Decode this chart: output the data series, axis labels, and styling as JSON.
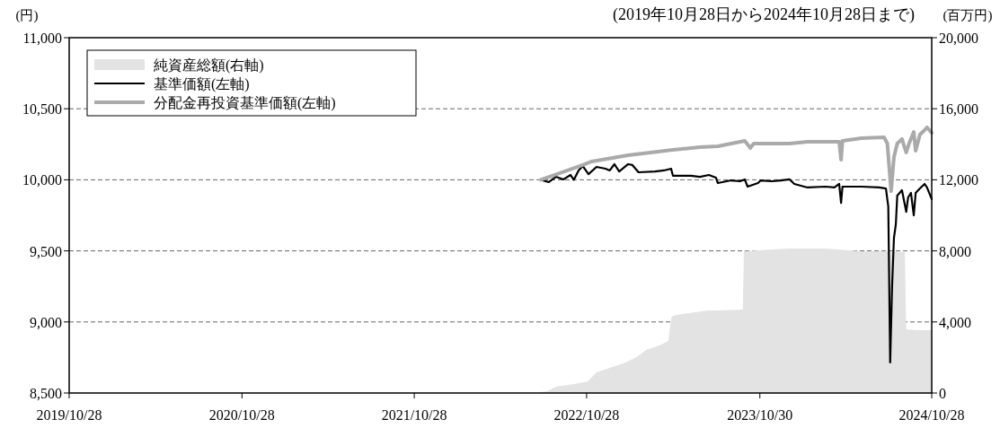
{
  "chart_data": {
    "type": "line",
    "subtitle": "(2019年10月28日から2024年10月28日まで)",
    "ylabel": "(円)",
    "y2label": "(百万円)",
    "xlim": [
      "2019-10-28",
      "2024-10-28"
    ],
    "xticks": [
      {
        "value": "2019-10-28",
        "label": "2019/10/28"
      },
      {
        "value": "2020-10-28",
        "label": "2020/10/28"
      },
      {
        "value": "2021-10-28",
        "label": "2021/10/28"
      },
      {
        "value": "2022-10-28",
        "label": "2022/10/28"
      },
      {
        "value": "2023-10-30",
        "label": "2023/10/30"
      },
      {
        "value": "2024-10-28",
        "label": "2024/10/28"
      }
    ],
    "ylim": [
      8500,
      11000
    ],
    "yticks": [
      {
        "value": 8500,
        "label": "8,500"
      },
      {
        "value": 9000,
        "label": "9,000"
      },
      {
        "value": 9500,
        "label": "9,500"
      },
      {
        "value": 10000,
        "label": "10,000"
      },
      {
        "value": 10500,
        "label": "10,500"
      },
      {
        "value": 11000,
        "label": "11,000"
      }
    ],
    "y2lim": [
      0,
      20000
    ],
    "y2ticks": [
      0,
      {
        "value": 4000,
        "label": "4,000"
      },
      {
        "value": 8000,
        "label": "8,000"
      },
      {
        "value": 12000,
        "label": "12,000"
      },
      {
        "value": 16000,
        "label": "16,000"
      },
      {
        "value": 20000,
        "label": "20,000"
      }
    ],
    "grid": "y",
    "legend": "top left",
    "series": [
      {
        "name": "純資産総額(右軸)",
        "type": "area",
        "axis": "y2",
        "color": "#e3e3e3",
        "x": [
          "2022-07-23",
          "2022-08-05",
          "2022-08-24",
          "2022-10-01",
          "2022-10-30",
          "2022-11-18",
          "2022-12-16",
          "2023-01-14",
          "2023-02-11",
          "2023-03-03",
          "2023-03-31",
          "2023-04-19",
          "2023-04-25",
          "2023-04-29",
          "2023-05-18",
          "2023-06-15",
          "2023-07-14",
          "2023-08-02",
          "2023-09-24",
          "2023-09-26",
          "2023-11-24",
          "2024-01-01",
          "2024-03-17",
          "2024-06-01",
          "2024-07-19",
          "2024-09-01",
          "2024-09-04",
          "2024-09-24",
          "2024-10-28"
        ],
        "values": [
          50,
          100,
          350,
          500,
          650,
          1160,
          1410,
          1670,
          2020,
          2420,
          2680,
          2930,
          4190,
          4340,
          4440,
          4550,
          4650,
          4650,
          4700,
          7980,
          8080,
          8130,
          8130,
          7980,
          7980,
          7930,
          3590,
          3540,
          3540
        ]
      },
      {
        "name": "基準価額(左軸)",
        "color": "#000000",
        "x": [
          "2022-07-23",
          "2022-08-09",
          "2022-08-24",
          "2022-09-09",
          "2022-09-24",
          "2022-10-01",
          "2022-10-11",
          "2022-10-20",
          "2022-11-01",
          "2022-11-18",
          "2022-12-07",
          "2022-12-16",
          "2022-12-26",
          "2023-01-05",
          "2023-01-24",
          "2023-02-02",
          "2023-02-15",
          "2023-03-22",
          "2023-04-10",
          "2023-04-25",
          "2023-04-29",
          "2023-06-06",
          "2023-06-25",
          "2023-07-14",
          "2023-07-29",
          "2023-08-02",
          "2023-08-30",
          "2023-09-18",
          "2023-09-28",
          "2023-10-04",
          "2023-10-26",
          "2023-11-01",
          "2023-11-24",
          "2023-12-13",
          "2024-01-01",
          "2024-01-11",
          "2024-02-08",
          "2024-03-17",
          "2024-04-05",
          "2024-04-15",
          "2024-04-19",
          "2024-04-22",
          "2024-06-01",
          "2024-07-09",
          "2024-07-23",
          "2024-07-28",
          "2024-08-01",
          "2024-08-05",
          "2024-08-09",
          "2024-08-13",
          "2024-08-16",
          "2024-08-26",
          "2024-09-04",
          "2024-09-08",
          "2024-09-14",
          "2024-09-20",
          "2024-09-24",
          "2024-10-03",
          "2024-10-13",
          "2024-10-18",
          "2024-10-28"
        ],
        "values": [
          10000,
          9984,
          10021,
          10003,
          10034,
          10000,
          10066,
          10097,
          10040,
          10091,
          10078,
          10066,
          10110,
          10059,
          10110,
          10104,
          10053,
          10059,
          10066,
          10078,
          10028,
          10028,
          10021,
          10034,
          10015,
          9977,
          9996,
          9990,
          10003,
          9952,
          9977,
          9996,
          9990,
          9996,
          10003,
          9971,
          9946,
          9952,
          9946,
          9971,
          9838,
          9952,
          9952,
          9946,
          9939,
          9813,
          8715,
          9245,
          9592,
          9687,
          9889,
          9927,
          9775,
          9876,
          9908,
          9750,
          9908,
          9939,
          9971,
          9946,
          9864
        ]
      },
      {
        "name": "分配金再投資基準価額(左軸)",
        "color": "#aaaaaa",
        "x": [
          "2022-07-23",
          "2022-10-20",
          "2022-11-08",
          "2023-01-24",
          "2023-04-29",
          "2023-06-25",
          "2023-08-02",
          "2023-09-28",
          "2023-10-10",
          "2023-10-17",
          "2024-01-01",
          "2024-02-08",
          "2024-04-15",
          "2024-04-19",
          "2024-04-22",
          "2024-06-01",
          "2024-07-19",
          "2024-07-26",
          "2024-08-03",
          "2024-08-09",
          "2024-08-16",
          "2024-08-26",
          "2024-09-04",
          "2024-09-10",
          "2024-09-20",
          "2024-09-24",
          "2024-10-03",
          "2024-10-13",
          "2024-10-18",
          "2024-10-28"
        ],
        "values": [
          10000,
          10104,
          10129,
          10173,
          10211,
          10230,
          10236,
          10274,
          10224,
          10255,
          10255,
          10268,
          10268,
          10141,
          10274,
          10293,
          10299,
          10255,
          9920,
          10160,
          10255,
          10287,
          10192,
          10255,
          10337,
          10205,
          10318,
          10350,
          10369,
          10331
        ]
      }
    ]
  }
}
